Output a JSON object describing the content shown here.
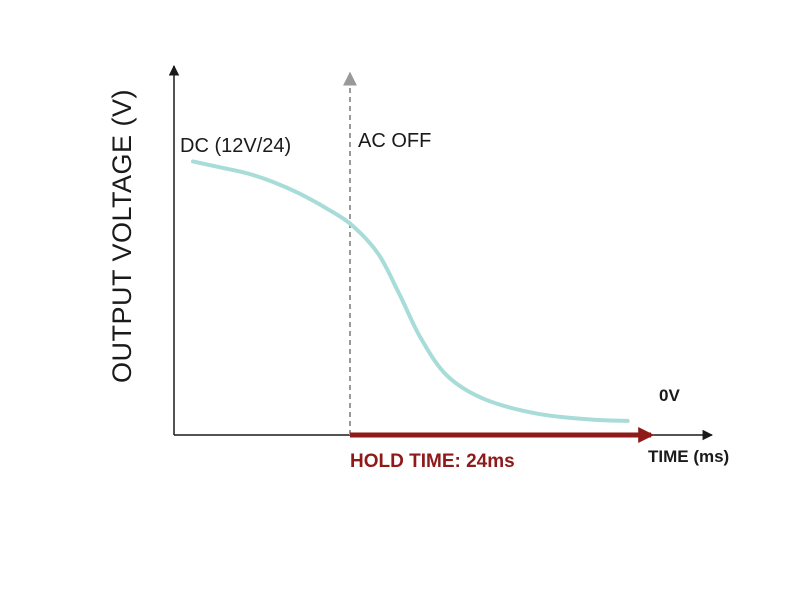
{
  "chart_data": {
    "type": "line",
    "title": "",
    "ylabel": "OUTPUT VOLTAGE (V)",
    "xlabel": "TIME (ms)",
    "series": [
      {
        "color": "#a8dcd8",
        "points": [
          [
            0.0,
            0.94
          ],
          [
            0.05,
            0.92
          ],
          [
            0.1,
            0.9
          ],
          [
            0.15,
            0.87
          ],
          [
            0.2,
            0.83
          ],
          [
            0.25,
            0.78
          ],
          [
            0.3,
            0.72
          ],
          [
            0.35,
            0.62
          ],
          [
            0.39,
            0.48
          ],
          [
            0.43,
            0.33
          ],
          [
            0.48,
            0.2
          ],
          [
            0.55,
            0.12
          ],
          [
            0.65,
            0.07
          ],
          [
            0.75,
            0.05
          ],
          [
            0.82,
            0.045
          ]
        ]
      }
    ],
    "annotations": {
      "start_label": "DC (12V/24)",
      "event_label": "AC OFF",
      "end_label": "0V",
      "hold_label": "HOLD TIME: 24ms"
    },
    "colors": {
      "axis": "#1a1a1a",
      "curve": "#a8dcd8",
      "event_line": "#999999",
      "hold_arrow": "#8e1a1a"
    }
  }
}
